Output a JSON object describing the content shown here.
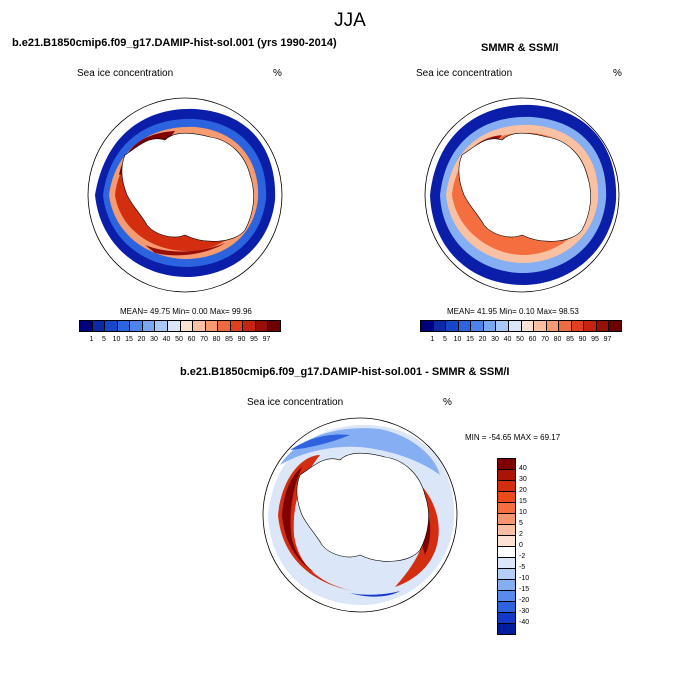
{
  "season": "JJA",
  "left_panel": {
    "title": "b.e21.B1850cmip6.f09_g17.DAMIP-hist-sol.001 (yrs 1990-2014)",
    "variable": "Sea ice concentration",
    "units": "%",
    "stats": "MEAN=  49.75  Min=   0.00  Max=  99.96"
  },
  "right_panel": {
    "title": "SMMR & SSM/I",
    "variable": "Sea ice concentration",
    "units": "%",
    "stats": "MEAN=  41.95  Min=   0.10  Max=  98.53"
  },
  "diff_panel": {
    "title": "b.e21.B1850cmip6.f09_g17.DAMIP-hist-sol.001 - SMMR & SSM/I",
    "variable": "Sea ice concentration",
    "units": "%",
    "stats": "MIN = -54.65 MAX =  69.17"
  },
  "conc_colorbar": {
    "labels": [
      "1",
      "5",
      "10",
      "15",
      "20",
      "30",
      "40",
      "50",
      "60",
      "70",
      "80",
      "85",
      "90",
      "95",
      "97"
    ],
    "colors": [
      "#00007f",
      "#0a2aa8",
      "#1846c8",
      "#2c63df",
      "#4f83ea",
      "#7aa7f2",
      "#a9c8f7",
      "#dbe7f8",
      "#fbe3d4",
      "#f9c1a2",
      "#f59a71",
      "#ee6b42",
      "#e0401f",
      "#c42410",
      "#990f08",
      "#6e0000"
    ]
  },
  "diff_colorbar": {
    "labels": [
      "40",
      "30",
      "20",
      "15",
      "10",
      "5",
      "2",
      "0",
      "-2",
      "-5",
      "-10",
      "-15",
      "-20",
      "-30",
      "-40"
    ],
    "colors": [
      "#7f0000",
      "#aa1406",
      "#d42e10",
      "#ed4a1c",
      "#f56e40",
      "#f79570",
      "#fbbea0",
      "#fde2d2",
      "#ffffff",
      "#dbe7f8",
      "#b2cdf6",
      "#86aef2",
      "#5a8aea",
      "#2f62df",
      "#1438c8",
      "#001c9e"
    ]
  }
}
